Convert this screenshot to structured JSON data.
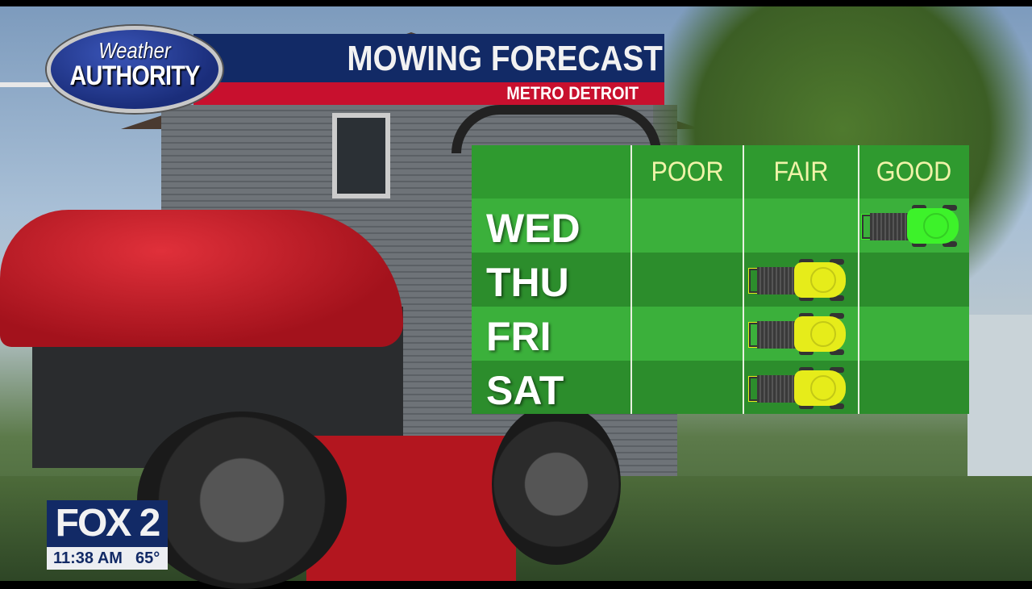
{
  "header": {
    "logo_line1": "Weather",
    "logo_line2": "AUTHORITY",
    "title": "MOWING FORECAST",
    "subtitle": "METRO DETROIT"
  },
  "table": {
    "columns": [
      "POOR",
      "FAIR",
      "GOOD"
    ],
    "rows": [
      {
        "day": "WED",
        "rating": "GOOD"
      },
      {
        "day": "THU",
        "rating": "FAIR"
      },
      {
        "day": "FRI",
        "rating": "FAIR"
      },
      {
        "day": "SAT",
        "rating": "FAIR"
      }
    ],
    "colors": {
      "GOOD": "#3df22a",
      "FAIR": "#e6ec1a",
      "header_text": "#f0f3a8"
    },
    "icon": "lawn-mower-icon"
  },
  "station": {
    "logo": "FOX 2",
    "time": "11:38 AM",
    "temperature": "65°"
  }
}
